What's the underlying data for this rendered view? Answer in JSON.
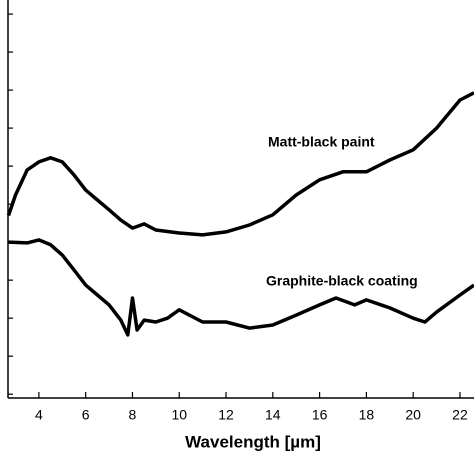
{
  "chart_data": {
    "type": "line",
    "x_label": "Wavelength [µm]",
    "annotations": [
      "Matt-black paint",
      "Graphite-black coating"
    ],
    "xlim": [
      2.68,
      22.6
    ],
    "xticks": [
      4,
      6,
      8,
      10,
      12,
      14,
      16,
      18,
      20,
      22
    ],
    "ylim": [
      0,
      10.47
    ],
    "yticks": [
      0.1,
      1.1,
      2.1,
      3.1,
      4.1,
      5.1,
      6.1,
      7.1,
      8.1,
      9.1,
      10.1
    ],
    "series": [
      {
        "name": "Matt-black paint",
        "color": "#000000",
        "x": [
          2.7,
          3.0,
          3.5,
          4.0,
          4.5,
          5.0,
          5.5,
          6.0,
          6.5,
          7.0,
          7.5,
          8.0,
          8.5,
          9.0,
          10,
          11,
          12,
          13,
          14,
          15,
          16,
          17,
          18,
          19,
          20,
          21,
          22,
          22.6
        ],
        "values": [
          4.8,
          5.34,
          6.0,
          6.21,
          6.32,
          6.21,
          5.87,
          5.47,
          5.21,
          4.95,
          4.68,
          4.47,
          4.58,
          4.42,
          4.34,
          4.29,
          4.37,
          4.55,
          4.82,
          5.34,
          5.74,
          5.95,
          5.95,
          6.26,
          6.53,
          7.1,
          7.84,
          8.03
        ]
      },
      {
        "name": "Graphite-black coating",
        "color": "#000000",
        "x": [
          2.7,
          3.5,
          4.0,
          4.5,
          5.0,
          5.5,
          6.0,
          6.5,
          7.0,
          7.5,
          7.8,
          8.0,
          8.2,
          8.5,
          9.0,
          9.5,
          10,
          11,
          12,
          13,
          14,
          15,
          16,
          16.7,
          17.5,
          18,
          19,
          20,
          20.5,
          21,
          22,
          22.6
        ],
        "values": [
          4.1,
          4.08,
          4.16,
          4.03,
          3.76,
          3.37,
          2.97,
          2.71,
          2.45,
          2.05,
          1.66,
          2.63,
          1.79,
          2.05,
          2.0,
          2.1,
          2.32,
          2.0,
          2.0,
          1.84,
          1.92,
          2.18,
          2.45,
          2.63,
          2.45,
          2.58,
          2.37,
          2.1,
          2.0,
          2.26,
          2.71,
          2.97
        ]
      }
    ]
  }
}
